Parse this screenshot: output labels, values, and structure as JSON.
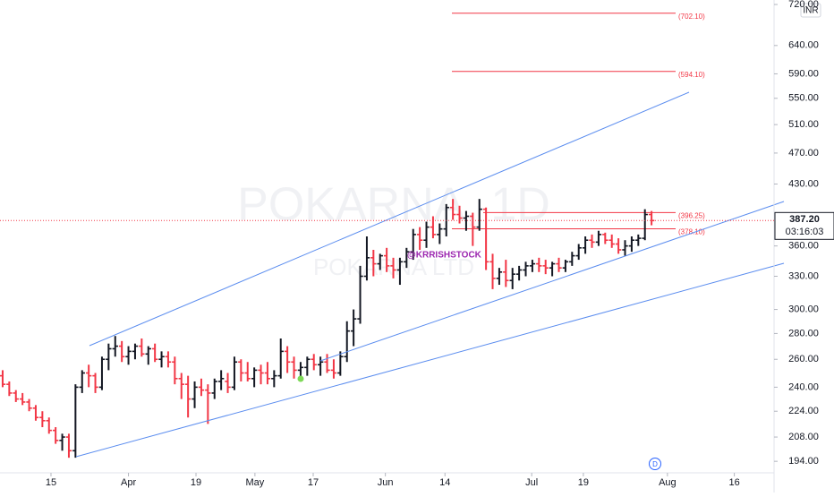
{
  "chart_data": {
    "type": "ohlc",
    "watermark": "POKARNA, 1D",
    "watermark_sub": "POKARNA LTD",
    "currency": "INR",
    "author": "@KRRISHSTOCK",
    "log_scale": true,
    "up_color": "#131722",
    "down_color": "#f23645",
    "ylim": [
      187.7,
      729.3
    ],
    "xlim": [
      -0.4,
      116.5
    ],
    "yticks": [
      {
        "value": 194,
        "label": "194.00"
      },
      {
        "value": 208,
        "label": "208.00"
      },
      {
        "value": 224,
        "label": "224.00"
      },
      {
        "value": 240,
        "label": "240.00"
      },
      {
        "value": 260,
        "label": "260.00"
      },
      {
        "value": 280,
        "label": "280.00"
      },
      {
        "value": 300,
        "label": "300.00"
      },
      {
        "value": 330,
        "label": "330.00"
      },
      {
        "value": 360,
        "label": "360.00"
      },
      {
        "value": 430,
        "label": "430.00"
      },
      {
        "value": 470,
        "label": "470.00"
      },
      {
        "value": 510,
        "label": "510.00"
      },
      {
        "value": 550,
        "label": "550.00"
      },
      {
        "value": 590,
        "label": "590.00"
      },
      {
        "value": 640,
        "label": "640.00"
      },
      {
        "value": 720,
        "label": "720.00"
      }
    ],
    "xticks": [
      {
        "value": 7.3,
        "label": "15"
      },
      {
        "value": 19,
        "label": "Apr"
      },
      {
        "value": 29.2,
        "label": "19"
      },
      {
        "value": 38.1,
        "label": "May"
      },
      {
        "value": 46.9,
        "label": "17"
      },
      {
        "value": 57.8,
        "label": "Jun"
      },
      {
        "value": 66.8,
        "label": "14"
      },
      {
        "value": 79.9,
        "label": "Jul"
      },
      {
        "value": 87.7,
        "label": "19"
      },
      {
        "value": 100.4,
        "label": "Aug"
      },
      {
        "value": 110.5,
        "label": "16"
      }
    ],
    "last_price": {
      "value": 387.2,
      "label": "387.20",
      "countdown": "03:16:03"
    },
    "levels": [
      {
        "value": 702.1,
        "label": "(702.10)"
      },
      {
        "value": 594.1,
        "label": "(594.10)"
      },
      {
        "value": 396.25,
        "label": "(396.25)"
      },
      {
        "value": 378.1,
        "label": "(378.10)"
      }
    ],
    "ohlc": [
      [
        248,
        252,
        240,
        242
      ],
      [
        242,
        244,
        234,
        236
      ],
      [
        236,
        238,
        230,
        232
      ],
      [
        232,
        236,
        228,
        230
      ],
      [
        230,
        232,
        224,
        226
      ],
      [
        226,
        228,
        218,
        220
      ],
      [
        220,
        224,
        214,
        218
      ],
      [
        218,
        220,
        210,
        212
      ],
      [
        212,
        214,
        204,
        206
      ],
      [
        206,
        210,
        200,
        208
      ],
      [
        208,
        210,
        196,
        200
      ],
      [
        200,
        242,
        196,
        240
      ],
      [
        240,
        252,
        236,
        250
      ],
      [
        250,
        256,
        240,
        248
      ],
      [
        248,
        250,
        236,
        240
      ],
      [
        240,
        262,
        238,
        260
      ],
      [
        260,
        272,
        252,
        268
      ],
      [
        268,
        278,
        262,
        270
      ],
      [
        270,
        274,
        258,
        262
      ],
      [
        262,
        270,
        256,
        266
      ],
      [
        266,
        272,
        260,
        270
      ],
      [
        270,
        276,
        262,
        264
      ],
      [
        264,
        270,
        256,
        268
      ],
      [
        268,
        272,
        258,
        260
      ],
      [
        260,
        266,
        254,
        262
      ],
      [
        262,
        266,
        254,
        258
      ],
      [
        258,
        262,
        242,
        246
      ],
      [
        246,
        250,
        232,
        242
      ],
      [
        242,
        248,
        220,
        232
      ],
      [
        232,
        244,
        226,
        240
      ],
      [
        240,
        246,
        234,
        238
      ],
      [
        238,
        242,
        216,
        236
      ],
      [
        236,
        246,
        232,
        244
      ],
      [
        244,
        252,
        238,
        246
      ],
      [
        244,
        250,
        236,
        240
      ],
      [
        240,
        262,
        238,
        258
      ],
      [
        258,
        260,
        244,
        250
      ],
      [
        250,
        258,
        244,
        246
      ],
      [
        246,
        254,
        240,
        252
      ],
      [
        252,
        256,
        242,
        250
      ],
      [
        250,
        258,
        242,
        246
      ],
      [
        246,
        252,
        240,
        248
      ],
      [
        248,
        276,
        246,
        266
      ],
      [
        266,
        270,
        250,
        258
      ],
      [
        258,
        262,
        246,
        252
      ],
      [
        252,
        258,
        244,
        254
      ],
      [
        254,
        262,
        248,
        260
      ],
      [
        260,
        264,
        252,
        256
      ],
      [
        256,
        262,
        248,
        258
      ],
      [
        258,
        264,
        250,
        252
      ],
      [
        252,
        260,
        246,
        250
      ],
      [
        250,
        266,
        248,
        262
      ],
      [
        262,
        290,
        258,
        282
      ],
      [
        282,
        300,
        270,
        292
      ],
      [
        292,
        340,
        288,
        330
      ],
      [
        330,
        370,
        326,
        348
      ],
      [
        348,
        356,
        330,
        342
      ],
      [
        342,
        352,
        336,
        350
      ],
      [
        350,
        358,
        334,
        340
      ],
      [
        340,
        348,
        328,
        336
      ],
      [
        336,
        348,
        322,
        344
      ],
      [
        344,
        358,
        338,
        354
      ],
      [
        354,
        378,
        346,
        372
      ],
      [
        372,
        380,
        356,
        366
      ],
      [
        366,
        386,
        358,
        380
      ],
      [
        380,
        392,
        368,
        372
      ],
      [
        372,
        384,
        362,
        378
      ],
      [
        378,
        406,
        370,
        402
      ],
      [
        402,
        412,
        388,
        394
      ],
      [
        394,
        404,
        384,
        390
      ],
      [
        390,
        398,
        376,
        392
      ],
      [
        392,
        396,
        360,
        380
      ],
      [
        380,
        412,
        376,
        400
      ],
      [
        400,
        402,
        336,
        344
      ],
      [
        344,
        352,
        318,
        328
      ],
      [
        328,
        338,
        322,
        334
      ],
      [
        334,
        346,
        320,
        326
      ],
      [
        326,
        338,
        318,
        332
      ],
      [
        332,
        340,
        326,
        336
      ],
      [
        336,
        344,
        330,
        340
      ],
      [
        340,
        346,
        334,
        342
      ],
      [
        342,
        348,
        334,
        340
      ],
      [
        340,
        346,
        332,
        338
      ],
      [
        338,
        344,
        330,
        342
      ],
      [
        342,
        348,
        334,
        338
      ],
      [
        338,
        346,
        334,
        344
      ],
      [
        344,
        354,
        340,
        350
      ],
      [
        350,
        362,
        346,
        358
      ],
      [
        358,
        370,
        352,
        366
      ],
      [
        366,
        372,
        358,
        364
      ],
      [
        364,
        376,
        360,
        372
      ],
      [
        372,
        374,
        362,
        366
      ],
      [
        366,
        372,
        358,
        362
      ],
      [
        362,
        368,
        352,
        356
      ],
      [
        356,
        366,
        350,
        360
      ],
      [
        360,
        370,
        354,
        366
      ],
      [
        366,
        372,
        360,
        368
      ],
      [
        368,
        400,
        366,
        394
      ],
      [
        394,
        398,
        382,
        387.2
      ]
    ]
  }
}
